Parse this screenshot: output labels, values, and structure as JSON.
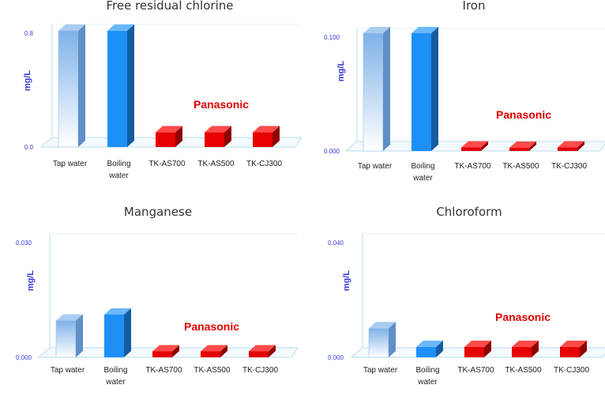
{
  "colors": {
    "ytext": "#3a3ad8",
    "brand": "#e00000",
    "axis": "#b9ddec",
    "tap_top": "#7eb1e8",
    "tap_bottom": "#ffffff",
    "boil": "#1e90f5",
    "red": "#e60000"
  },
  "chart_data": [
    {
      "type": "bar",
      "title": "Free residual chlorine",
      "ylabel": "mg/L",
      "ylim": [
        0,
        0.8
      ],
      "yticks": [
        "0.0",
        "0.8"
      ],
      "categories": [
        "Tap water",
        "Boiling water",
        "TK-AS700",
        "TK-AS500",
        "TK-CJ300"
      ],
      "category_lines": [
        [
          "Tap water"
        ],
        [
          "Boiling",
          "water"
        ],
        [
          "TK-AS700"
        ],
        [
          "TK-AS500"
        ],
        [
          "TK-CJ300"
        ]
      ],
      "values": [
        0.79,
        0.79,
        0.1,
        0.1,
        0.1
      ],
      "brand_label": "Panasonic"
    },
    {
      "type": "bar",
      "title": "Iron",
      "ylabel": "mg/L",
      "ylim": [
        0,
        0.1
      ],
      "yticks": [
        "0.000",
        "0.100"
      ],
      "categories": [
        "Tap water",
        "Boiling water",
        "TK-AS700",
        "TK-AS500",
        "TK-CJ300"
      ],
      "category_lines": [
        [
          "Tap water"
        ],
        [
          "Boiling",
          "water"
        ],
        [
          "TK-AS700"
        ],
        [
          "TK-AS500"
        ],
        [
          "TK-CJ300"
        ]
      ],
      "values": [
        0.1,
        0.1,
        0.003,
        0.001,
        0.003
      ],
      "brand_label": "Panasonic"
    },
    {
      "type": "bar",
      "title": "Manganese",
      "ylabel": "mg/L",
      "ylim": [
        0,
        0.03
      ],
      "yticks": [
        "0.000",
        "0.030"
      ],
      "categories": [
        "Tap water",
        "Boiling water",
        "TK-AS700",
        "TK-AS500",
        "TK-CJ300"
      ],
      "category_lines": [
        [
          "Tap water"
        ],
        [
          "Boiling",
          "water"
        ],
        [
          "TK-AS700"
        ],
        [
          "TK-AS500"
        ],
        [
          "TK-CJ300"
        ]
      ],
      "values": [
        0.0093,
        0.0108,
        0.0015,
        0.0015,
        0.0015
      ],
      "brand_label": "Panasonic"
    },
    {
      "type": "bar",
      "title": "Chloroform",
      "ylabel": "mg/L",
      "ylim": [
        0,
        0.04
      ],
      "yticks": [
        "0.000",
        "0.040"
      ],
      "categories": [
        "Tap water",
        "Boiling water",
        "TK-AS700",
        "TK-AS500",
        "TK-CJ300"
      ],
      "category_lines": [
        [
          "Tap water"
        ],
        [
          "Boiling",
          "water"
        ],
        [
          "TK-AS700"
        ],
        [
          "TK-AS500"
        ],
        [
          "TK-CJ300"
        ]
      ],
      "values": [
        0.0098,
        0.0035,
        0.0035,
        0.0035,
        0.0035
      ],
      "brand_label": "Panasonic"
    }
  ]
}
